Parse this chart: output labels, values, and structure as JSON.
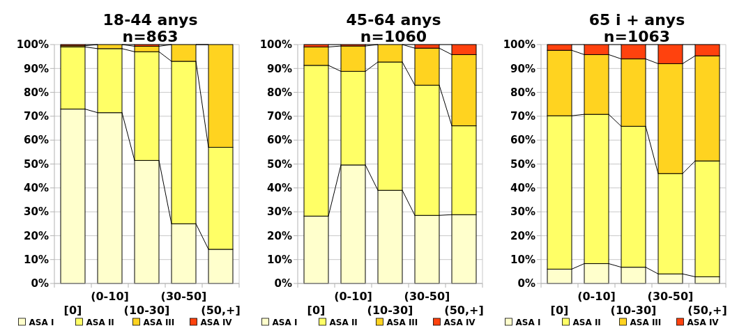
{
  "chart_data": [
    {
      "type": "bar",
      "stacked": true,
      "title": "18-44 anys",
      "subtitle": "n=863",
      "categories": [
        "[0]",
        "(0-10]",
        "(10-30]",
        "(30-50]",
        "(50,+]"
      ],
      "ylim": [
        0,
        100
      ],
      "yticks": [
        {
          "value": 0,
          "label": "0%"
        },
        {
          "value": 10,
          "label": "10%"
        },
        {
          "value": 20,
          "label": "20%"
        },
        {
          "value": 30,
          "label": "30%"
        },
        {
          "value": 40,
          "label": "40%"
        },
        {
          "value": 50,
          "label": "50%"
        },
        {
          "value": 60,
          "label": "60%"
        },
        {
          "value": 70,
          "label": "70%"
        },
        {
          "value": 80,
          "label": "80%"
        },
        {
          "value": 90,
          "label": "90%"
        },
        {
          "value": 100,
          "label": "100%"
        }
      ],
      "grid": "y",
      "legend": "bottom",
      "series": [
        {
          "name": "ASA I",
          "color": "#ffffcc",
          "values": [
            73,
            71.5,
            51.5,
            25,
            14.3
          ]
        },
        {
          "name": "ASA II",
          "color": "#ffff66",
          "values": [
            26,
            26.8,
            45.5,
            68,
            42.7
          ]
        },
        {
          "name": "ASA III",
          "color": "#ffd320",
          "values": [
            0.5,
            1.7,
            2.3,
            7,
            43
          ]
        },
        {
          "name": "ASA IV",
          "color": "#ff420e",
          "values": [
            0.5,
            0,
            0.7,
            0,
            0
          ]
        }
      ]
    },
    {
      "type": "bar",
      "stacked": true,
      "title": "45-64 anys",
      "subtitle": "n=1060",
      "categories": [
        "[0]",
        "(0-10]",
        "(10-30]",
        "(30-50]",
        "(50,+]"
      ],
      "ylim": [
        0,
        100
      ],
      "yticks": [
        {
          "value": 0,
          "label": "0%"
        },
        {
          "value": 10,
          "label": "10%"
        },
        {
          "value": 20,
          "label": "20%"
        },
        {
          "value": 30,
          "label": "30%"
        },
        {
          "value": 40,
          "label": "40%"
        },
        {
          "value": 50,
          "label": "50%"
        },
        {
          "value": 60,
          "label": "60%"
        },
        {
          "value": 70,
          "label": "70%"
        },
        {
          "value": 80,
          "label": "80%"
        },
        {
          "value": 90,
          "label": "90%"
        },
        {
          "value": 100,
          "label": "100%"
        }
      ],
      "grid": "y",
      "legend": "bottom",
      "series": [
        {
          "name": "ASA I",
          "color": "#ffffcc",
          "values": [
            28.2,
            49.6,
            39,
            28.5,
            28.8
          ]
        },
        {
          "name": "ASA II",
          "color": "#ffff66",
          "values": [
            63.1,
            39.2,
            53.7,
            54.5,
            37.2
          ]
        },
        {
          "name": "ASA III",
          "color": "#ffd320",
          "values": [
            7.7,
            10.6,
            7.3,
            15.5,
            29.8
          ]
        },
        {
          "name": "ASA IV",
          "color": "#ff420e",
          "values": [
            1,
            0.6,
            0,
            1.5,
            4.2
          ]
        }
      ]
    },
    {
      "type": "bar",
      "stacked": true,
      "title": "65 i + anys",
      "subtitle": "n=1063",
      "categories": [
        "[0]",
        "(0-10]",
        "(10-30]",
        "(30-50]",
        "(50,+]"
      ],
      "ylim": [
        0,
        100
      ],
      "yticks": [
        {
          "value": 0,
          "label": "0%"
        },
        {
          "value": 10,
          "label": "10%"
        },
        {
          "value": 20,
          "label": "20%"
        },
        {
          "value": 30,
          "label": "30%"
        },
        {
          "value": 40,
          "label": "40%"
        },
        {
          "value": 50,
          "label": "50%"
        },
        {
          "value": 60,
          "label": "60%"
        },
        {
          "value": 70,
          "label": "70%"
        },
        {
          "value": 80,
          "label": "80%"
        },
        {
          "value": 90,
          "label": "90%"
        },
        {
          "value": 100,
          "label": "100%"
        }
      ],
      "grid": "y",
      "legend": "bottom",
      "series": [
        {
          "name": "ASA I",
          "color": "#ffffcc",
          "values": [
            6,
            8.3,
            6.8,
            4,
            2.8
          ]
        },
        {
          "name": "ASA II",
          "color": "#ffff66",
          "values": [
            64.2,
            62.5,
            59,
            42,
            48.5
          ]
        },
        {
          "name": "ASA III",
          "color": "#ffd320",
          "values": [
            27.4,
            25,
            28.2,
            46,
            44
          ]
        },
        {
          "name": "ASA IV",
          "color": "#ff420e",
          "values": [
            2.4,
            4.2,
            6,
            8,
            4.7
          ]
        }
      ]
    }
  ]
}
